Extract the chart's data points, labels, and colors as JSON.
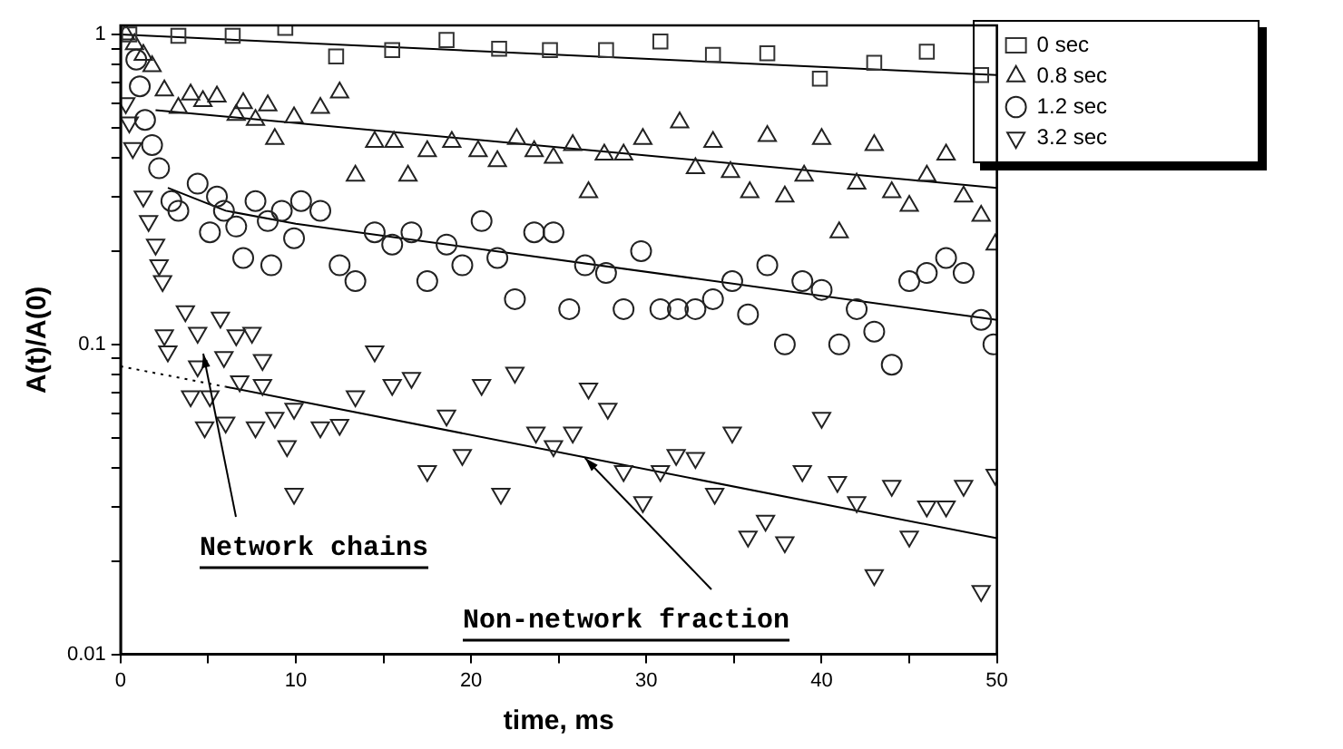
{
  "chart_data": {
    "type": "scatter",
    "xlabel": "time, ms",
    "ylabel": "A(t)/A(0)",
    "xlim": [
      0,
      50
    ],
    "ylim": [
      0.01,
      1.07
    ],
    "xticks": [
      0,
      {
        "value": 5,
        "label": null
      },
      10,
      {
        "value": 15,
        "label": null
      },
      20,
      {
        "value": 25,
        "label": null
      },
      30,
      {
        "value": 35,
        "label": null
      },
      40,
      {
        "value": 45,
        "label": null
      },
      50
    ],
    "yticks": [
      0.01,
      {
        "value": 0.02,
        "label": null
      },
      {
        "value": 0.03,
        "label": null
      },
      {
        "value": 0.04,
        "label": null
      },
      {
        "value": 0.05,
        "label": null
      },
      {
        "value": 0.06,
        "label": null
      },
      {
        "value": 0.07,
        "label": null
      },
      {
        "value": 0.08,
        "label": null
      },
      {
        "value": 0.09,
        "label": null
      },
      0.1,
      {
        "value": 0.2,
        "label": null
      },
      {
        "value": 0.3,
        "label": null
      },
      {
        "value": 0.4,
        "label": null
      },
      {
        "value": 0.5,
        "label": null
      },
      {
        "value": 0.6,
        "label": null
      },
      {
        "value": 0.7,
        "label": null
      },
      {
        "value": 0.8,
        "label": null
      },
      {
        "value": 0.9,
        "label": null
      },
      1
    ],
    "log": "y",
    "grid": false,
    "legend": "top right",
    "annotations": [
      "Network chains",
      {
        "text": "Non-network fraction",
        "x": 26.5,
        "y": 0.043
      }
    ],
    "series": [
      {
        "name": "0 sec",
        "type": "scatter",
        "marker": "square",
        "color": "#333333",
        "x": [
          0.5,
          3.3,
          6.4,
          9.4,
          12.3,
          15.5,
          18.6,
          21.6,
          24.5,
          27.7,
          30.8,
          33.8,
          36.9,
          39.9,
          43,
          46,
          49.1
        ],
        "values": [
          1.0,
          0.99,
          0.99,
          1.05,
          0.85,
          0.89,
          0.96,
          0.9,
          0.89,
          0.89,
          0.95,
          0.86,
          0.87,
          0.72,
          0.81,
          0.88,
          0.74
        ]
      },
      {
        "name": "0.8 sec",
        "type": "scatter",
        "marker": "triangle",
        "color": "#222222",
        "x": [
          0.3,
          0.8,
          1.3,
          1.8,
          2.5,
          3.3,
          4.0,
          4.7,
          5.5,
          6.6,
          7.0,
          7.7,
          8.4,
          8.8,
          9.9,
          11.4,
          12.5,
          13.4,
          14.5,
          15.6,
          16.4,
          17.5,
          18.9,
          20.4,
          21.5,
          22.6,
          23.6,
          24.7,
          25.8,
          26.7,
          27.6,
          28.7,
          29.8,
          31.9,
          32.8,
          33.8,
          34.8,
          35.9,
          36.9,
          37.9,
          39,
          40,
          41,
          42,
          43,
          44,
          45,
          46,
          47.1,
          48.1,
          49.1,
          49.9
        ],
        "values": [
          1.0,
          0.93,
          0.86,
          0.79,
          0.66,
          0.58,
          0.64,
          0.61,
          0.63,
          0.55,
          0.6,
          0.53,
          0.59,
          0.46,
          0.54,
          0.58,
          0.65,
          0.35,
          0.45,
          0.45,
          0.35,
          0.42,
          0.45,
          0.42,
          0.39,
          0.46,
          0.42,
          0.4,
          0.44,
          0.31,
          0.41,
          0.41,
          0.46,
          0.52,
          0.37,
          0.45,
          0.36,
          0.31,
          0.47,
          0.3,
          0.35,
          0.46,
          0.23,
          0.33,
          0.44,
          0.31,
          0.28,
          0.35,
          0.41,
          0.3,
          0.26,
          0.21
        ]
      },
      {
        "name": "1.2 sec",
        "type": "scatter",
        "marker": "circle",
        "color": "#222222",
        "x": [
          0.9,
          1.1,
          1.4,
          1.8,
          2.2,
          2.9,
          3.3,
          4.4,
          5.1,
          5.5,
          5.9,
          6.6,
          7.0,
          7.7,
          8.4,
          8.6,
          9.2,
          9.9,
          10.3,
          11.4,
          12.5,
          13.4,
          14.5,
          15.5,
          16.6,
          17.5,
          18.6,
          19.5,
          20.6,
          21.5,
          22.5,
          23.6,
          24.7,
          25.6,
          26.5,
          27.7,
          28.7,
          29.7,
          30.8,
          31.8,
          32.8,
          33.8,
          34.9,
          35.8,
          36.9,
          37.9,
          38.9,
          40,
          41,
          42,
          43,
          44,
          45,
          46,
          47.1,
          48.1,
          49.1,
          49.8
        ],
        "values": [
          0.83,
          0.68,
          0.53,
          0.44,
          0.37,
          0.29,
          0.27,
          0.33,
          0.23,
          0.3,
          0.27,
          0.24,
          0.19,
          0.29,
          0.25,
          0.18,
          0.27,
          0.22,
          0.29,
          0.27,
          0.18,
          0.16,
          0.23,
          0.21,
          0.23,
          0.16,
          0.21,
          0.18,
          0.25,
          0.19,
          0.14,
          0.23,
          0.23,
          0.13,
          0.18,
          0.17,
          0.13,
          0.2,
          0.13,
          0.13,
          0.13,
          0.14,
          0.16,
          0.125,
          0.18,
          0.1,
          0.16,
          0.15,
          0.1,
          0.13,
          0.11,
          0.086,
          0.16,
          0.17,
          0.19,
          0.17,
          0.12,
          0.1
        ]
      },
      {
        "name": "3.2 sec",
        "type": "scatter",
        "marker": "triangle-down",
        "color": "#222222",
        "x": [
          0.3,
          0.5,
          0.7,
          1.3,
          1.6,
          2.0,
          2.2,
          2.4,
          2.5,
          2.7,
          3.7,
          4.0,
          4.4,
          4.4,
          4.8,
          5.1,
          5.7,
          5.9,
          6.0,
          6.6,
          6.8,
          7.5,
          7.7,
          8.1,
          8.1,
          8.8,
          9.5,
          9.9,
          9.9,
          11.4,
          12.5,
          13.4,
          14.5,
          15.5,
          16.6,
          17.5,
          18.6,
          19.5,
          20.6,
          21.7,
          22.5,
          23.7,
          24.7,
          25.8,
          26.7,
          27.8,
          28.7,
          29.8,
          30.8,
          31.7,
          32.8,
          33.9,
          34.9,
          35.8,
          36.8,
          37.9,
          38.9,
          40,
          40.9,
          42,
          43,
          44,
          45,
          46,
          47.1,
          48.1,
          49.1,
          49.9
        ],
        "values": [
          0.6,
          0.52,
          0.43,
          0.3,
          0.25,
          0.21,
          0.18,
          0.16,
          0.107,
          0.095,
          0.128,
          0.068,
          0.109,
          0.085,
          0.054,
          0.068,
          0.122,
          0.091,
          0.056,
          0.107,
          0.076,
          0.109,
          0.054,
          0.089,
          0.074,
          0.058,
          0.047,
          0.062,
          0.033,
          0.054,
          0.055,
          0.068,
          0.095,
          0.074,
          0.078,
          0.039,
          0.059,
          0.044,
          0.074,
          0.033,
          0.081,
          0.052,
          0.047,
          0.052,
          0.072,
          0.062,
          0.039,
          0.031,
          0.039,
          0.044,
          0.043,
          0.033,
          0.052,
          0.024,
          0.027,
          0.023,
          0.039,
          0.058,
          0.036,
          0.031,
          0.018,
          0.035,
          0.024,
          0.03,
          0.03,
          0.035,
          0.016,
          0.038
        ]
      },
      {
        "type": "line",
        "marker": "none",
        "line_style": "solid",
        "color": "#000000",
        "x": [
          0,
          50
        ],
        "values": [
          1.0,
          0.74
        ]
      },
      {
        "type": "line",
        "marker": "none",
        "line_style": "solid",
        "color": "#000000",
        "x": [
          2,
          50
        ],
        "values": [
          0.57,
          0.32
        ]
      },
      {
        "type": "line",
        "marker": "none",
        "line_style": "solid",
        "color": "#000000",
        "x": [
          2.7,
          6,
          10,
          50
        ],
        "values": [
          0.32,
          0.27,
          0.245,
          0.12
        ]
      },
      {
        "type": "line",
        "marker": "none",
        "line_style": "dotted",
        "color": "#000000",
        "x": [
          0,
          6
        ],
        "values": [
          0.085,
          0.073
        ]
      },
      {
        "type": "line",
        "marker": "none",
        "line_style": "solid",
        "color": "#000000",
        "x": [
          6,
          50
        ],
        "values": [
          0.073,
          0.0237
        ]
      }
    ]
  }
}
